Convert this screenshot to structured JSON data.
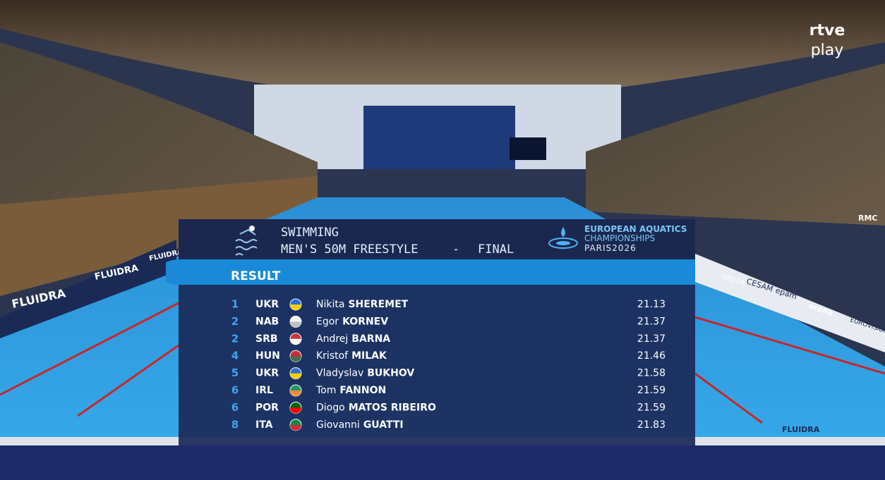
{
  "watermark": {
    "line1": "rtve",
    "line2": "play"
  },
  "signage": [
    "FLUIDRA",
    "FLUIDRA",
    "FLUIDRA",
    "OMEGA",
    "CESAM",
    "epam",
    "arena",
    "RMC",
    "EUROVISION SPORT",
    "FLUIDRA"
  ],
  "header": {
    "sport": "SWIMMING",
    "event": "MEN'S 50M FREESTYLE",
    "separator": "-",
    "stage": "FINAL",
    "logo": {
      "line1": "EUROPEAN AQUATICS",
      "line2": "CHAMPIONSHIPS",
      "line3": "PARIS2026"
    }
  },
  "section": "RESULT",
  "table": {
    "rows": [
      [
        "1",
        "UKR",
        "Nikita",
        "SHEREMET",
        "21.13"
      ],
      [
        "2",
        "NAB",
        "Egor",
        "KORNEV",
        "21.37"
      ],
      [
        "2",
        "SRB",
        "Andrej",
        "BARNA",
        "21.37"
      ],
      [
        "4",
        "HUN",
        "Kristof",
        "MILAK",
        "21.46"
      ],
      [
        "5",
        "UKR",
        "Vladyslav",
        "BUKHOV",
        "21.58"
      ],
      [
        "6",
        "IRL",
        "Tom",
        "FANNON",
        "21.59"
      ],
      [
        "6",
        "POR",
        "Diogo",
        "MATOS RIBEIRO",
        "21.59"
      ],
      [
        "8",
        "ITA",
        "Giovanni",
        "GUATTI",
        "21.83"
      ]
    ]
  }
}
